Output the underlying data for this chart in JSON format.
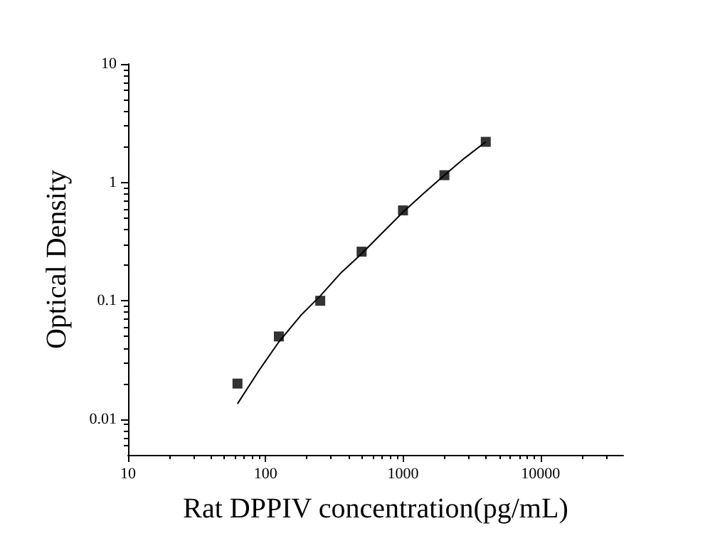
{
  "chart_data": {
    "type": "scatter",
    "xlabel": "Rat DPPIV concentration(pg/mL)",
    "ylabel": "Optical Density",
    "log": "xy",
    "marker": "square",
    "grid": false,
    "xlim": [
      10,
      40000
    ],
    "xticks": [
      10,
      100,
      1000,
      10000
    ],
    "ylim": [
      0.005,
      10
    ],
    "yticks": [
      0.01,
      0.1,
      1,
      10
    ],
    "series": [
      {
        "color": "#000000",
        "x": [
          62.5,
          125,
          250,
          500,
          1000,
          2000,
          4000
        ],
        "values": [
          0.02,
          0.05,
          0.1,
          0.26,
          0.58,
          1.15,
          2.2
        ]
      },
      {
        "type": "line",
        "color": "#000000",
        "marker": "none",
        "x": [
          62.5,
          90,
          125,
          180,
          250,
          350,
          500,
          700,
          1000,
          1400,
          2000,
          2800,
          4000
        ],
        "values": [
          0.0135,
          0.026,
          0.045,
          0.075,
          0.11,
          0.17,
          0.25,
          0.37,
          0.56,
          0.8,
          1.15,
          1.6,
          2.2
        ]
      }
    ]
  }
}
